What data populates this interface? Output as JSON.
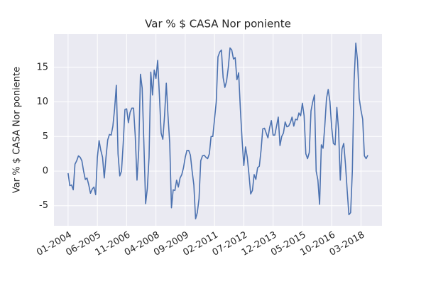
{
  "chart_data": {
    "type": "line",
    "title": "Var % $ CASA Nor poniente",
    "y_label": "Var % $ CASA Nor poniente",
    "x": [
      "01-2004",
      "02-2004",
      "03-2004",
      "04-2004",
      "05-2004",
      "06-2004",
      "07-2004",
      "08-2004",
      "09-2004",
      "10-2004",
      "11-2004",
      "12-2004",
      "01-2005",
      "02-2005",
      "03-2005",
      "04-2005",
      "05-2005",
      "06-2005",
      "07-2005",
      "08-2005",
      "09-2005",
      "10-2005",
      "11-2005",
      "12-2005",
      "01-2006",
      "02-2006",
      "03-2006",
      "04-2006",
      "05-2006",
      "06-2006",
      "07-2006",
      "08-2006",
      "09-2006",
      "10-2006",
      "11-2006",
      "12-2006",
      "01-2007",
      "02-2007",
      "03-2007",
      "04-2007",
      "05-2007",
      "06-2007",
      "07-2007",
      "08-2007",
      "09-2007",
      "10-2007",
      "11-2007",
      "12-2007",
      "01-2008",
      "02-2008",
      "03-2008",
      "04-2008",
      "05-2008",
      "06-2008",
      "07-2008",
      "08-2008",
      "09-2008",
      "10-2008",
      "11-2008",
      "12-2008",
      "01-2009",
      "02-2009",
      "03-2009",
      "04-2009",
      "05-2009",
      "06-2009",
      "07-2009",
      "08-2009",
      "09-2009",
      "10-2009",
      "11-2009",
      "12-2009",
      "01-2010",
      "02-2010",
      "03-2010",
      "04-2010",
      "05-2010",
      "06-2010",
      "07-2010",
      "08-2010",
      "09-2010",
      "10-2010",
      "11-2010",
      "12-2010",
      "01-2011",
      "02-2011",
      "03-2011",
      "04-2011",
      "05-2011",
      "06-2011",
      "07-2011",
      "08-2011",
      "09-2011",
      "10-2011",
      "11-2011",
      "12-2011",
      "01-2012",
      "02-2012",
      "03-2012",
      "04-2012",
      "05-2012",
      "06-2012",
      "07-2012",
      "08-2012",
      "09-2012",
      "10-2012",
      "11-2012",
      "12-2012",
      "01-2013",
      "02-2013",
      "03-2013",
      "04-2013",
      "05-2013",
      "06-2013",
      "07-2013",
      "08-2013",
      "09-2013",
      "10-2013",
      "11-2013",
      "12-2013",
      "01-2014",
      "02-2014",
      "03-2014",
      "04-2014",
      "05-2014",
      "06-2014",
      "07-2014",
      "08-2014",
      "09-2014",
      "10-2014",
      "11-2014",
      "12-2014",
      "01-2015",
      "02-2015",
      "03-2015",
      "04-2015",
      "05-2015",
      "06-2015",
      "07-2015",
      "08-2015",
      "09-2015",
      "10-2015",
      "11-2015",
      "12-2015",
      "01-2016",
      "02-2016",
      "03-2016",
      "04-2016",
      "05-2016",
      "06-2016",
      "07-2016",
      "08-2016",
      "09-2016",
      "10-2016",
      "11-2016",
      "12-2016",
      "01-2017",
      "02-2017",
      "03-2017",
      "04-2017",
      "05-2017",
      "06-2017",
      "07-2017",
      "08-2017",
      "09-2017",
      "10-2017",
      "11-2017",
      "12-2017",
      "01-2018",
      "02-2018",
      "03-2018",
      "04-2018",
      "05-2018",
      "06-2018",
      "07-2018"
    ],
    "values": [
      -0.3,
      -2.1,
      -2.0,
      -2.7,
      1.0,
      1.5,
      2.2,
      2.0,
      1.5,
      0.0,
      -1.2,
      -1.0,
      -2.0,
      -3.2,
      -2.6,
      -2.3,
      -3.4,
      2.0,
      4.4,
      3.0,
      2.0,
      -1.0,
      2.0,
      4.5,
      5.3,
      5.2,
      6.5,
      9.0,
      12.4,
      2.5,
      -0.7,
      0.0,
      4.0,
      8.9,
      9.0,
      7.0,
      8.5,
      9.1,
      9.1,
      5.0,
      -1.3,
      3.0,
      14.0,
      12.0,
      4.0,
      -4.7,
      -2.5,
      2.0,
      14.3,
      11.0,
      14.6,
      13.4,
      16.0,
      11.0,
      5.5,
      4.6,
      8.0,
      12.7,
      8.0,
      4.0,
      -5.3,
      -2.7,
      -2.8,
      -1.3,
      -2.3,
      -1.0,
      -0.5,
      0.5,
      2.0,
      3.0,
      3.0,
      2.3,
      0.0,
      -2.0,
      -6.9,
      -6.0,
      -4.0,
      1.5,
      2.2,
      2.3,
      2.0,
      1.8,
      2.5,
      5.0,
      5.0,
      7.5,
      10.0,
      16.5,
      17.2,
      17.5,
      13.5,
      12.1,
      13.0,
      15.0,
      17.8,
      17.5,
      16.2,
      16.4,
      13.2,
      14.2,
      9.0,
      4.5,
      0.8,
      3.5,
      2.0,
      -0.5,
      -3.3,
      -2.8,
      -0.5,
      -1.2,
      0.5,
      0.7,
      3.0,
      6.1,
      6.2,
      5.5,
      4.8,
      6.3,
      7.3,
      5.2,
      5.2,
      6.5,
      7.8,
      3.7,
      5.0,
      5.5,
      7.1,
      6.4,
      6.5,
      7.0,
      7.8,
      6.5,
      7.5,
      7.4,
      8.4,
      8.0,
      9.8,
      8.0,
      2.5,
      1.8,
      2.7,
      8.7,
      10.0,
      11.0,
      0.0,
      -1.3,
      -4.8,
      3.8,
      3.3,
      6.5,
      10.5,
      11.8,
      10.0,
      6.3,
      4.0,
      3.8,
      9.2,
      6.0,
      -1.3,
      3.2,
      4.0,
      1.0,
      -2.8,
      -6.3,
      -6.0,
      0.0,
      13.0,
      18.5,
      16.0,
      10.5,
      8.8,
      7.5,
      2.2,
      1.8,
      2.3
    ],
    "color": "#4c72b0",
    "xticks": [
      "01-2004",
      "06-2005",
      "11-2006",
      "04-2008",
      "09-2009",
      "02-2011",
      "07-2012",
      "12-2013",
      "05-2015",
      "10-2016",
      "03-2018"
    ],
    "ylim": [
      -7.9,
      19.8
    ],
    "yticks": [
      -5,
      0,
      5,
      10,
      15
    ],
    "grid": true
  }
}
